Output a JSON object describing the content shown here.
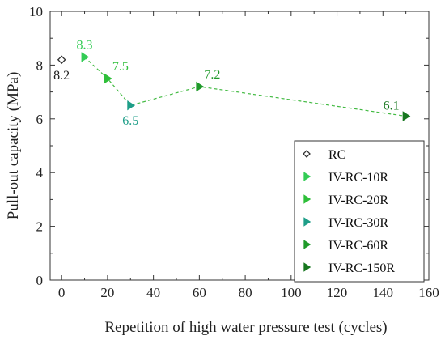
{
  "chart_data": {
    "type": "scatter",
    "title": "",
    "xlabel": "Repetition of high water pressure test (cycles)",
    "ylabel": "Pull-out capacity (MPa)",
    "xlim": [
      -5,
      160
    ],
    "ylim": [
      0,
      10
    ],
    "xticks": [
      0,
      20,
      40,
      60,
      80,
      100,
      120,
      140,
      160
    ],
    "yticks": [
      0,
      2,
      4,
      6,
      8,
      10
    ],
    "xtick_labels": [
      "0",
      "20",
      "40",
      "60",
      "80",
      "100",
      "120",
      "140",
      "160"
    ],
    "ytick_labels": [
      "0",
      "2",
      "4",
      "6",
      "8",
      "10"
    ],
    "grid": false,
    "legend_position": "bottom-right",
    "connector": {
      "style": "dashed",
      "color": "#44bb44",
      "from_series": 1
    },
    "series": [
      {
        "name": "RC",
        "x": 0,
        "y": 8.2,
        "label": "8.2",
        "marker": "diamond-open",
        "color": "#333333",
        "label_color": "#222222",
        "label_pos": "below"
      },
      {
        "name": "IV-RC-10R",
        "x": 10,
        "y": 8.3,
        "label": "8.3",
        "marker": "triangle-right",
        "color": "#33cc55",
        "label_color": "#33cc55",
        "label_pos": "above"
      },
      {
        "name": "IV-RC-20R",
        "x": 20,
        "y": 7.5,
        "label": "7.5",
        "marker": "triangle-right",
        "color": "#2fbf3a",
        "label_color": "#2fbf3a",
        "label_pos": "above-right"
      },
      {
        "name": "IV-RC-30R",
        "x": 30,
        "y": 6.5,
        "label": "6.5",
        "marker": "triangle-right",
        "color": "#1e9e88",
        "label_color": "#1e9e88",
        "label_pos": "below"
      },
      {
        "name": "IV-RC-60R",
        "x": 60,
        "y": 7.2,
        "label": "7.2",
        "marker": "triangle-right",
        "color": "#1f9a2a",
        "label_color": "#1f9a2a",
        "label_pos": "above-right"
      },
      {
        "name": "IV-RC-150R",
        "x": 150,
        "y": 6.1,
        "label": "6.1",
        "marker": "triangle-right",
        "color": "#17771f",
        "label_color": "#17771f",
        "label_pos": "above-left"
      }
    ]
  }
}
